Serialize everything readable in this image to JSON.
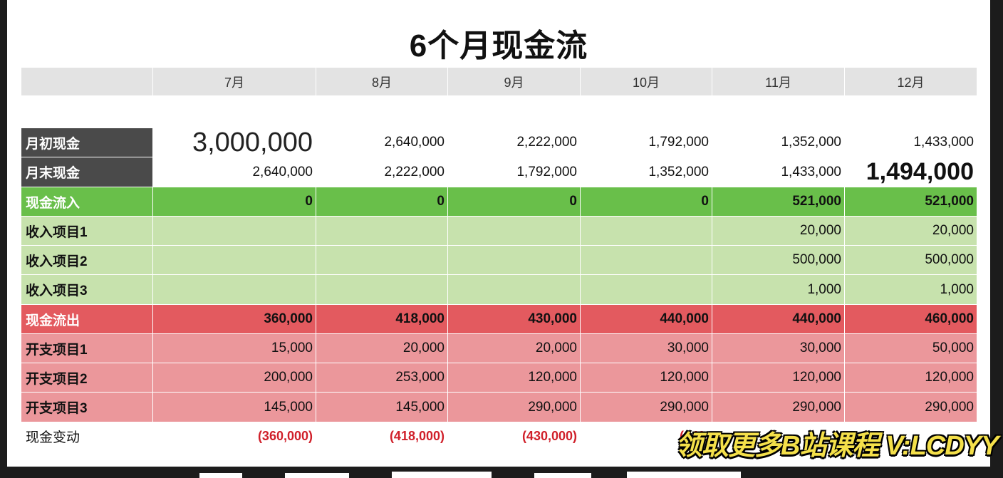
{
  "title": "6个月现金流",
  "months": [
    "7月",
    "8月",
    "9月",
    "10月",
    "11月",
    "12月"
  ],
  "rows": {
    "opening": {
      "label": "月初现金",
      "values": [
        "3,000,000",
        "2,640,000",
        "2,222,000",
        "1,792,000",
        "1,352,000",
        "1,433,000"
      ]
    },
    "closing": {
      "label": "月末现金",
      "values": [
        "2,640,000",
        "2,222,000",
        "1,792,000",
        "1,352,000",
        "1,433,000",
        "1,494,000"
      ]
    },
    "inflow": {
      "label": "现金流入",
      "values": [
        "0",
        "0",
        "0",
        "0",
        "521,000",
        "521,000"
      ]
    },
    "income1": {
      "label": "收入项目1",
      "values": [
        "",
        "",
        "",
        "",
        "20,000",
        "20,000"
      ]
    },
    "income2": {
      "label": "收入项目2",
      "values": [
        "",
        "",
        "",
        "",
        "500,000",
        "500,000"
      ]
    },
    "income3": {
      "label": "收入项目3",
      "values": [
        "",
        "",
        "",
        "",
        "1,000",
        "1,000"
      ]
    },
    "outflow": {
      "label": "现金流出",
      "values": [
        "360,000",
        "418,000",
        "430,000",
        "440,000",
        "440,000",
        "460,000"
      ]
    },
    "expense1": {
      "label": "开支项目1",
      "values": [
        "15,000",
        "20,000",
        "20,000",
        "30,000",
        "30,000",
        "50,000"
      ]
    },
    "expense2": {
      "label": "开支项目2",
      "values": [
        "200,000",
        "253,000",
        "120,000",
        "120,000",
        "120,000",
        "120,000"
      ]
    },
    "expense3": {
      "label": "开支项目3",
      "values": [
        "145,000",
        "145,000",
        "290,000",
        "290,000",
        "290,000",
        "290,000"
      ]
    },
    "change": {
      "label": "现金变动",
      "values": [
        "(360,000)",
        "(418,000)",
        "(430,000)",
        "(440,",
        "",
        ""
      ]
    }
  },
  "watermark": "领取更多B站课程 V:LCDYY",
  "colors": {
    "header_bg": "#e3e3e3",
    "label_dark": "#4a4a4a",
    "inflow_dark": "#69bf4a",
    "inflow_light": "#c7e2ad",
    "outflow_dark": "#e35a5f",
    "outflow_light": "#eb979b",
    "negative_text": "#d0202a",
    "watermark": "#f4e04a"
  }
}
